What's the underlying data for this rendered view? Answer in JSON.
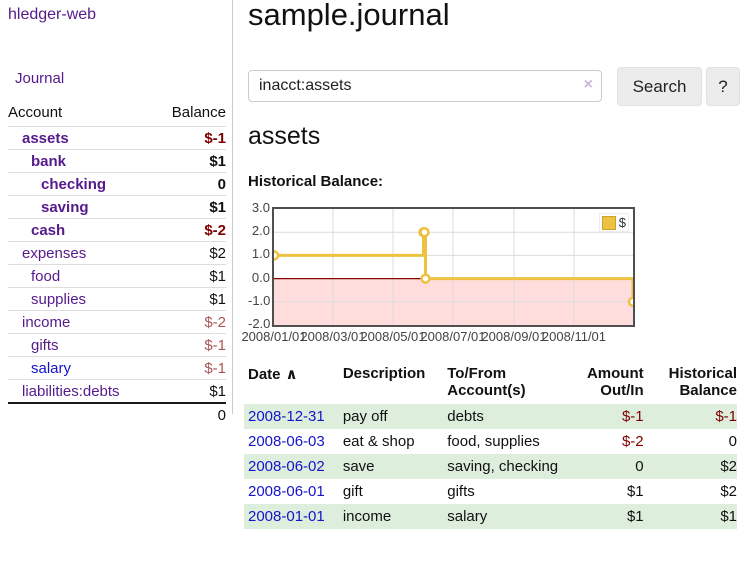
{
  "app": {
    "brand": "hledger-web"
  },
  "sidebar": {
    "journal_link": "Journal",
    "accounts_table": {
      "headers": {
        "account": "Account",
        "balance": "Balance"
      },
      "rows": [
        {
          "name": "assets",
          "indent": 1,
          "bold": true,
          "link": "visited",
          "balance": "$-1",
          "balance_class": "amt-neg"
        },
        {
          "name": "bank",
          "indent": 2,
          "bold": true,
          "link": "visited",
          "balance": "$1",
          "balance_class": ""
        },
        {
          "name": "checking",
          "indent": 3,
          "bold": true,
          "link": "visited",
          "balance": "0",
          "balance_class": ""
        },
        {
          "name": "saving",
          "indent": 3,
          "bold": true,
          "link": "visited",
          "balance": "$1",
          "balance_class": ""
        },
        {
          "name": "cash",
          "indent": 2,
          "bold": true,
          "link": "visited",
          "balance": "$-2",
          "balance_class": "amt-neg"
        },
        {
          "name": "expenses",
          "indent": 1,
          "bold": false,
          "link": "visited",
          "balance": "$2",
          "balance_class": ""
        },
        {
          "name": "food",
          "indent": 2,
          "bold": false,
          "link": "visited",
          "balance": "$1",
          "balance_class": ""
        },
        {
          "name": "supplies",
          "indent": 2,
          "bold": false,
          "link": "visited",
          "balance": "$1",
          "balance_class": ""
        },
        {
          "name": "income",
          "indent": 1,
          "bold": false,
          "link": "visited",
          "balance": "$-2",
          "balance_class": "amt-neg-faded"
        },
        {
          "name": "gifts",
          "indent": 2,
          "bold": false,
          "link": "visited",
          "balance": "$-1",
          "balance_class": "amt-neg-faded"
        },
        {
          "name": "salary",
          "indent": 2,
          "bold": false,
          "link": "unvisited",
          "balance": "$-1",
          "balance_class": "amt-neg-faded"
        },
        {
          "name": "liabilities:debts",
          "indent": 1,
          "bold": false,
          "link": "visited",
          "balance": "$1",
          "balance_class": ""
        }
      ],
      "total": "0"
    }
  },
  "main": {
    "title": "sample.journal",
    "search": {
      "value": "inacct:assets",
      "clear_icon": "×",
      "search_label": "Search",
      "help_label": "?"
    },
    "account_heading": "assets",
    "register": {
      "headers": [
        {
          "label": "Date",
          "sort_indicator": "∧",
          "align": "left"
        },
        {
          "label": "Description",
          "align": "left"
        },
        {
          "label": "To/From Account(s)",
          "align": "left"
        },
        {
          "label": "Amount Out/In",
          "align": "right"
        },
        {
          "label": "Historical Balance",
          "align": "right"
        }
      ],
      "rows": [
        {
          "date": "2008-12-31",
          "description": "pay off",
          "accounts": "debts",
          "amount": "$-1",
          "amount_class": "amt-neg",
          "balance": "$-1",
          "balance_class": "amt-neg"
        },
        {
          "date": "2008-06-03",
          "description": "eat & shop",
          "accounts": "food, supplies",
          "amount": "$-2",
          "amount_class": "amt-neg",
          "balance": "0",
          "balance_class": ""
        },
        {
          "date": "2008-06-02",
          "description": "save",
          "accounts": "saving, checking",
          "amount": "0",
          "amount_class": "",
          "balance": "$2",
          "balance_class": ""
        },
        {
          "date": "2008-06-01",
          "description": "gift",
          "accounts": "gifts",
          "amount": "$1",
          "amount_class": "",
          "balance": "$2",
          "balance_class": ""
        },
        {
          "date": "2008-01-01",
          "description": "income",
          "accounts": "salary",
          "amount": "$1",
          "amount_class": "",
          "balance": "$1",
          "balance_class": ""
        }
      ]
    }
  },
  "chart_data": {
    "type": "line",
    "title": "Historical Balance:",
    "step": true,
    "series": [
      {
        "name": "$",
        "color": "#EDC240",
        "points": [
          [
            "2008-01-01",
            1
          ],
          [
            "2008-06-01",
            2
          ],
          [
            "2008-06-02",
            2
          ],
          [
            "2008-06-03",
            0
          ],
          [
            "2008-12-31",
            -1
          ]
        ]
      }
    ],
    "x_ticks": [
      "2008/01/01",
      "2008/03/01",
      "2008/05/01",
      "2008/07/01",
      "2008/09/01",
      "2008/11/01"
    ],
    "y_ticks": [
      "3.0",
      "2.0",
      "1.0",
      "0.0",
      "-1.0",
      "-2.0"
    ],
    "xlim": [
      "2008-01-01",
      "2008-12-31"
    ],
    "ylim": [
      -2,
      3
    ],
    "grid": true,
    "legend": {
      "label": "$",
      "position": "top-right"
    },
    "negative_region_color": "#ffdddd",
    "zero_line_color": "#800000",
    "grid_color": "#dcdcdc"
  },
  "colors": {
    "link_blue": "#1414cc",
    "link_visited_purple": "#551A8B",
    "negative_red": "#7f0000",
    "negative_faded_red": "#aa5555",
    "series_gold": "#EDC240",
    "row_stripe_green": "#ddeedd",
    "chart_negative_bg": "#ffdddd",
    "chart_border": "#4f4f4f"
  }
}
